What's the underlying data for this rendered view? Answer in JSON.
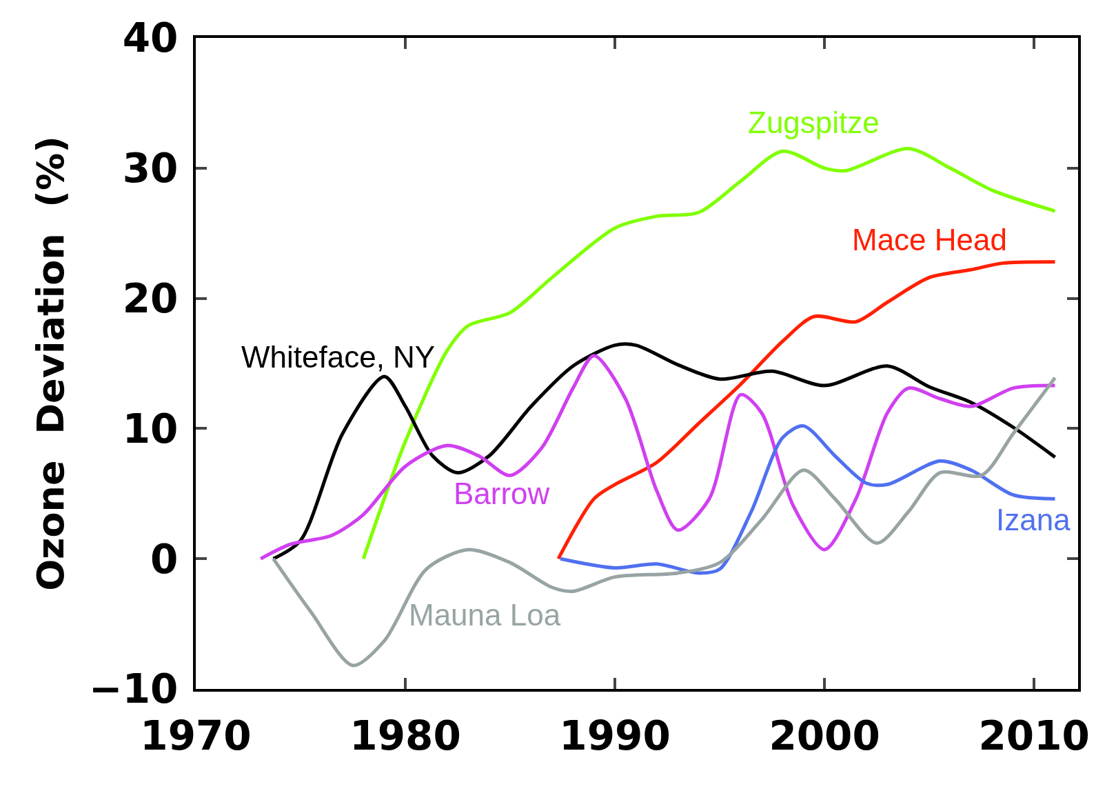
{
  "chart_data": {
    "type": "line",
    "ylabel": "Ozone  Deviation  (%)",
    "xlim": [
      1970,
      2012.1
    ],
    "xticks": [
      1970,
      1980,
      1990,
      2000,
      2010
    ],
    "ylim": [
      -10,
      40
    ],
    "yticks": [
      {
        "value": -10,
        "label": "−10"
      },
      0,
      10,
      20,
      30,
      40
    ],
    "grid": false,
    "legend": false,
    "marker": "none",
    "line_style": "solid",
    "series": [
      {
        "name": "Zugspitze",
        "color": "#80ff00",
        "x": [
          1978,
          1980,
          1982,
          1983,
          1985,
          1987,
          1990,
          1992,
          1994,
          1996,
          1998,
          2000,
          2001,
          2004,
          2006,
          2008,
          2011
        ],
        "values": [
          0,
          9,
          16,
          17.9,
          18.9,
          21.6,
          25.4,
          26.3,
          26.6,
          29,
          31.3,
          30,
          29.8,
          31.5,
          30,
          28.3,
          26.7
        ]
      },
      {
        "name": "Mace Head",
        "color": "#ff2000",
        "x": [
          1987.3,
          1989,
          1990,
          1992,
          1994,
          1996,
          1998,
          1999.5,
          2001.5,
          2003,
          2005,
          2007,
          2008.5,
          2011
        ],
        "values": [
          0,
          4.6,
          5.7,
          7.4,
          10.4,
          13.4,
          16.7,
          18.6,
          18.2,
          19.7,
          21.6,
          22.2,
          22.7,
          22.8
        ]
      },
      {
        "name": "Whiteface, NY",
        "color": "#000000",
        "x": [
          1973.7,
          1975,
          1977,
          1979,
          1980,
          1981.3,
          1982.5,
          1984,
          1986,
          1988,
          1990,
          1991,
          1993,
          1995,
          1997.5,
          2000,
          2003,
          2005,
          2007,
          2009,
          2011
        ],
        "values": [
          0,
          1.4,
          9.6,
          14,
          11.7,
          7.9,
          6.6,
          7.9,
          11.7,
          14.8,
          16.4,
          16.4,
          14.9,
          13.8,
          14.4,
          13.3,
          14.8,
          13.2,
          12,
          10.1,
          7.8
        ]
      },
      {
        "name": "Barrow",
        "color": "#d040f0",
        "x": [
          1973.1,
          1974.5,
          1976.5,
          1978,
          1980,
          1982,
          1983.5,
          1985,
          1986.5,
          1988,
          1989,
          1990.5,
          1992,
          1993,
          1994.5,
          1996,
          1997,
          1998.5,
          2000,
          2001.5,
          2003,
          2004,
          2005.5,
          2007,
          2009,
          2011
        ],
        "values": [
          0,
          1.1,
          1.8,
          3.4,
          7.1,
          8.7,
          7.9,
          6.4,
          8.5,
          13.1,
          15.6,
          12.3,
          5.2,
          2.2,
          4.6,
          12.6,
          11.2,
          4.1,
          0.7,
          4.6,
          11.2,
          13.1,
          12.3,
          11.7,
          13.1,
          13.3
        ]
      },
      {
        "name": "Izana",
        "color": "#5070f0",
        "x": [
          1987.4,
          1990,
          1992,
          1994,
          1995,
          1996.5,
          1998,
          1999,
          2000.5,
          2002,
          2003,
          2005.5,
          2007,
          2009,
          2011
        ],
        "values": [
          0,
          -0.7,
          -0.4,
          -1.1,
          -0.8,
          3.6,
          9.3,
          10.2,
          7.9,
          5.8,
          5.7,
          7.5,
          6.8,
          4.9,
          4.6
        ]
      },
      {
        "name": "Mauna Loa",
        "color": "#98a4a4",
        "x": [
          1973.7,
          1975.5,
          1977.5,
          1979,
          1981,
          1983,
          1985,
          1987,
          1988,
          1990,
          1993,
          1995,
          1997,
          1999,
          2000.5,
          2002.5,
          2004,
          2005.5,
          2007.5,
          2009,
          2011
        ],
        "values": [
          0,
          -4.1,
          -8.2,
          -6.3,
          -0.8,
          0.7,
          -0.3,
          -2.2,
          -2.5,
          -1.4,
          -1.1,
          -0.3,
          3,
          6.8,
          4.6,
          1.2,
          3.6,
          6.6,
          6.4,
          9.6,
          13.9
        ]
      }
    ]
  }
}
